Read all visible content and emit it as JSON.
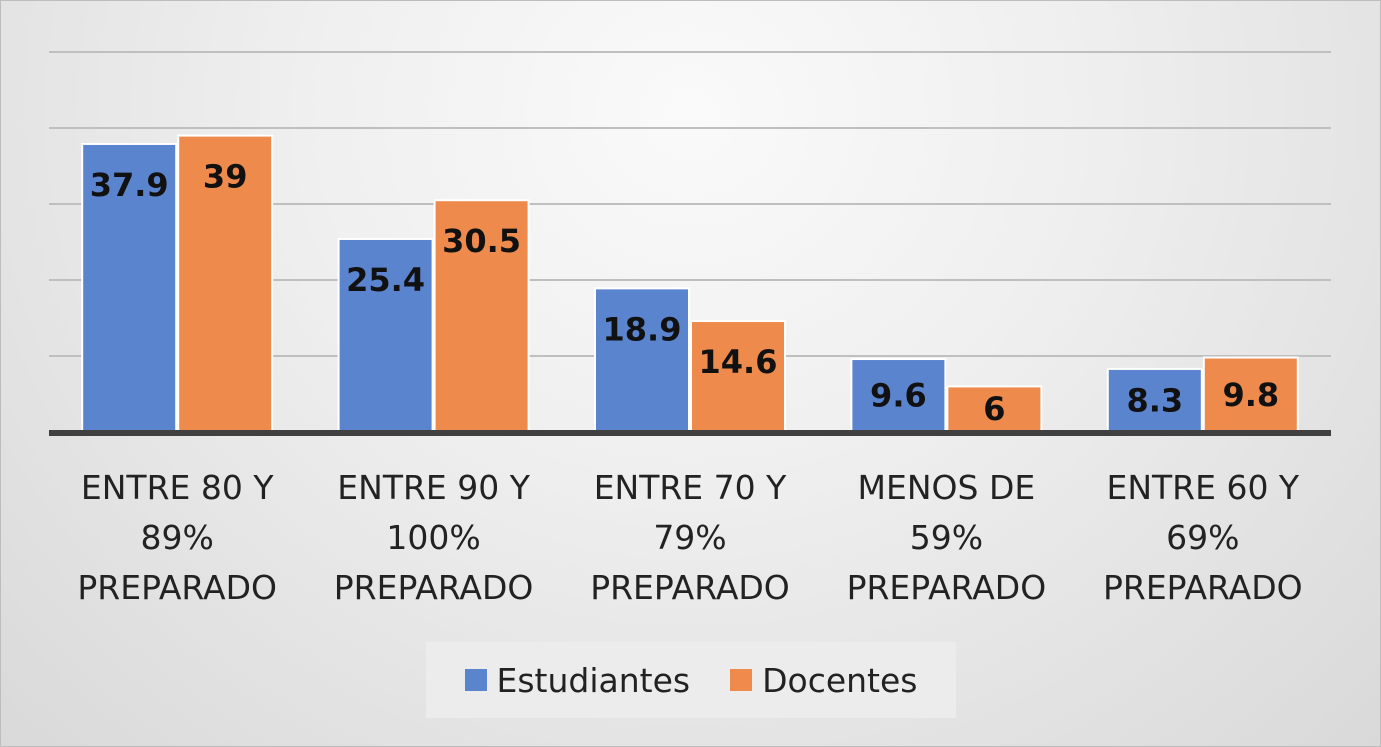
{
  "chart_data": {
    "type": "bar",
    "categories": [
      [
        "ENTRE 80 Y",
        "89%",
        "PREPARADO"
      ],
      [
        "ENTRE 90 Y",
        "100%",
        "PREPARADO"
      ],
      [
        "ENTRE 70 Y",
        "79%",
        "PREPARADO"
      ],
      [
        "MENOS DE",
        "59%",
        "PREPARADO"
      ],
      [
        "ENTRE 60 Y",
        "69%",
        "PREPARADO"
      ]
    ],
    "series": [
      {
        "name": "Estudiantes",
        "color": "#5b84cf",
        "values": [
          37.9,
          25.4,
          18.9,
          9.6,
          8.3
        ],
        "labels": [
          "37.9",
          "25.4",
          "18.9",
          "9.6",
          "8.3"
        ]
      },
      {
        "name": "Docentes",
        "color": "#ee8b4c",
        "values": [
          39,
          30.5,
          14.6,
          6,
          9.8
        ],
        "labels": [
          "39",
          "30.5",
          "14.6",
          "6",
          "9.8"
        ]
      }
    ],
    "ylim": [
      0,
      50
    ],
    "gridlines": [
      10,
      20,
      30,
      40,
      50
    ],
    "axis_labels_shown": false,
    "legend_position": "bottom"
  }
}
